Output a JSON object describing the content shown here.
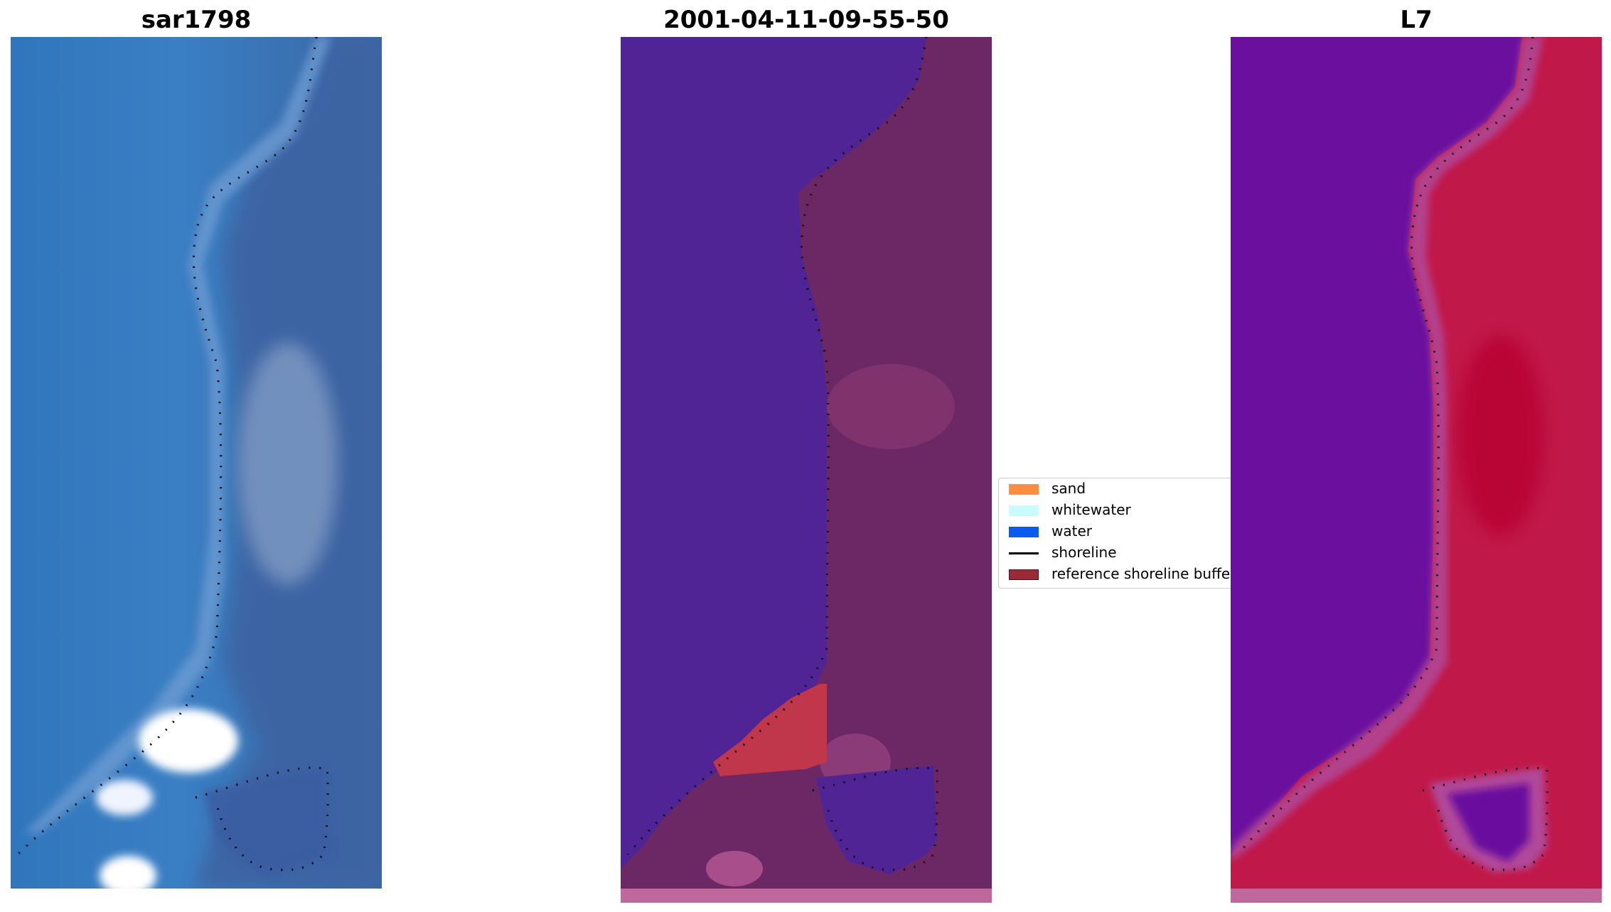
{
  "panels": [
    {
      "title": "sar1798",
      "kind": "rgb-composite"
    },
    {
      "title": "2001-04-11-09-55-50",
      "kind": "classified"
    },
    {
      "title": "L7",
      "kind": "mndwi"
    }
  ],
  "legend": {
    "items": [
      {
        "label": "sand",
        "type": "patch",
        "color": "#ff8c40"
      },
      {
        "label": "whitewater",
        "type": "patch",
        "color": "#c8fcfc"
      },
      {
        "label": "water",
        "type": "patch",
        "color": "#0a5af0"
      },
      {
        "label": "shoreline",
        "type": "line",
        "color": "#000000"
      },
      {
        "label": "reference shoreline buffer",
        "type": "patch",
        "color": "#9a2a35"
      }
    ]
  }
}
